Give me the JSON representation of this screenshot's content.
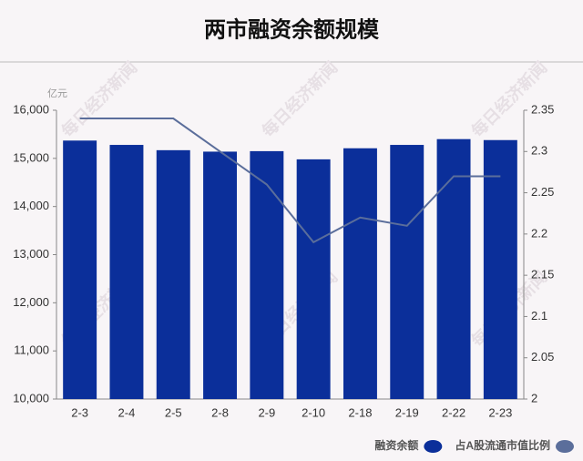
{
  "chart_data": {
    "type": "bar_line",
    "title": "两市融资余额规模",
    "y_unit": "亿元",
    "watermark": "每日经济新闻",
    "categories": [
      "2-3",
      "2-4",
      "2-5",
      "2-8",
      "2-9",
      "2-10",
      "2-18",
      "2-19",
      "2-22",
      "2-23"
    ],
    "series": [
      {
        "name": "融资余额",
        "type": "bar",
        "color": "#0b2f9a",
        "axis": "y",
        "values": [
          15370,
          15280,
          15170,
          15140,
          15150,
          14980,
          15210,
          15280,
          15400,
          15380
        ]
      },
      {
        "name": "占A股流通市值比例",
        "type": "line",
        "color": "#5b6e9b",
        "axis": "y2",
        "values": [
          2.34,
          2.34,
          2.34,
          2.3,
          2.26,
          2.19,
          2.22,
          2.21,
          2.27,
          2.27
        ]
      }
    ],
    "ylim": [
      10000,
      16000
    ],
    "yticks": [
      {
        "value": 10000,
        "label": "10,000"
      },
      {
        "value": 11000,
        "label": "11,000"
      },
      {
        "value": 12000,
        "label": "12,000"
      },
      {
        "value": 13000,
        "label": "13,000"
      },
      {
        "value": 14000,
        "label": "14,000"
      },
      {
        "value": 15000,
        "label": "15,000"
      },
      {
        "value": 16000,
        "label": "16,000"
      }
    ],
    "y2lim": [
      2,
      2.35
    ],
    "y2ticks": [
      2,
      2.05,
      2.1,
      2.15,
      2.2,
      2.25,
      2.3,
      2.35
    ],
    "legend": "bottom-right"
  }
}
